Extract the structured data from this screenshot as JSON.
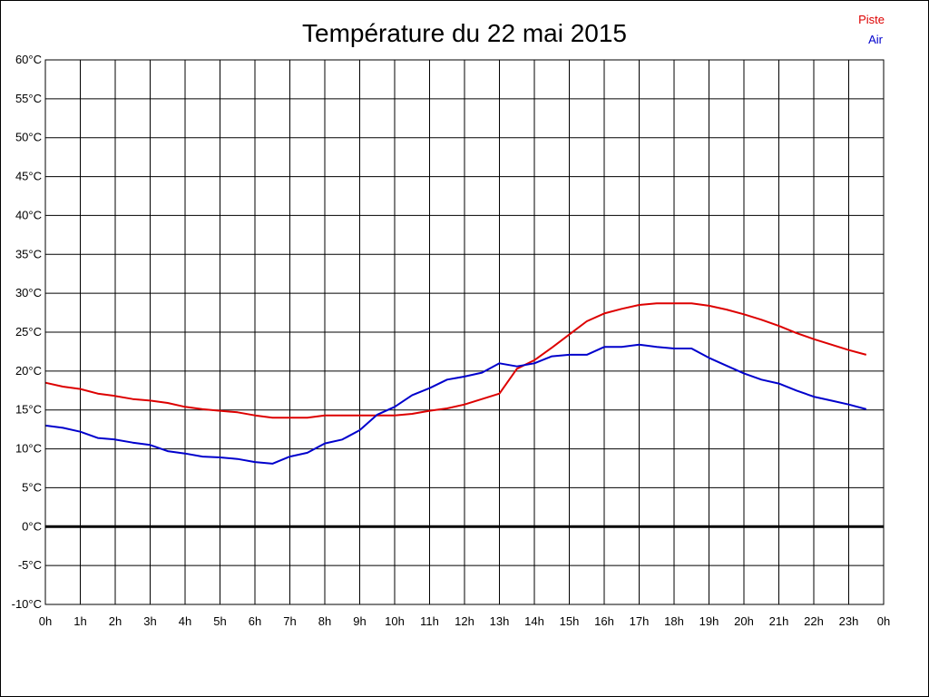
{
  "chart_data": {
    "type": "line",
    "title": "Température du 22 mai 2015",
    "xlabel": "",
    "ylabel": "",
    "x_ticks": [
      "0h",
      "1h",
      "2h",
      "3h",
      "4h",
      "5h",
      "6h",
      "7h",
      "8h",
      "9h",
      "10h",
      "11h",
      "12h",
      "13h",
      "14h",
      "15h",
      "16h",
      "17h",
      "18h",
      "19h",
      "20h",
      "21h",
      "22h",
      "23h",
      "0h"
    ],
    "y_ticks": [
      "60°C",
      "55°C",
      "50°C",
      "45°C",
      "40°C",
      "35°C",
      "30°C",
      "25°C",
      "20°C",
      "15°C",
      "10°C",
      "5°C",
      "0°C",
      "-5°C",
      "-10°C"
    ],
    "xlim": [
      0,
      24
    ],
    "ylim": [
      -10,
      60
    ],
    "grid": true,
    "legend_position": "top-right",
    "series": [
      {
        "name": "Piste",
        "color": "#dd0000",
        "x": [
          0,
          0.5,
          1,
          1.5,
          2,
          2.5,
          3,
          3.5,
          4,
          4.5,
          5,
          5.5,
          6,
          6.5,
          7,
          7.5,
          8,
          8.5,
          9,
          9.5,
          10,
          10.5,
          11,
          11.5,
          12,
          12.5,
          13,
          13.5,
          14,
          14.5,
          15,
          15.5,
          16,
          16.5,
          17,
          17.5,
          18,
          18.5,
          19,
          19.5,
          20,
          20.5,
          21,
          21.5,
          22,
          22.5,
          23,
          23.5
        ],
        "values": [
          18.5,
          18.0,
          17.7,
          17.1,
          16.8,
          16.4,
          16.2,
          15.9,
          15.4,
          15.1,
          14.9,
          14.7,
          14.3,
          14.0,
          14.0,
          14.0,
          14.3,
          14.3,
          14.3,
          14.3,
          14.3,
          14.5,
          14.9,
          15.2,
          15.7,
          16.4,
          17.1,
          20.3,
          21.4,
          23.0,
          24.7,
          26.4,
          27.4,
          28.0,
          28.5,
          28.7,
          28.7,
          28.7,
          28.4,
          27.9,
          27.3,
          26.6,
          25.8,
          24.9,
          24.1,
          23.4,
          22.7,
          22.1
        ]
      },
      {
        "name": "Air",
        "color": "#0000cc",
        "x": [
          0,
          0.5,
          1,
          1.5,
          2,
          2.5,
          3,
          3.5,
          4,
          4.5,
          5,
          5.5,
          6,
          6.5,
          7,
          7.5,
          8,
          8.5,
          9,
          9.5,
          10,
          10.5,
          11,
          11.5,
          12,
          12.5,
          13,
          13.5,
          14,
          14.5,
          15,
          15.5,
          16,
          16.5,
          17,
          17.5,
          18,
          18.5,
          19,
          19.5,
          20,
          20.5,
          21,
          21.5,
          22,
          22.5,
          23,
          23.5
        ],
        "values": [
          13.0,
          12.7,
          12.2,
          11.4,
          11.2,
          10.8,
          10.5,
          9.7,
          9.4,
          9.0,
          8.9,
          8.7,
          8.3,
          8.1,
          9.0,
          9.5,
          10.7,
          11.2,
          12.4,
          14.4,
          15.4,
          16.9,
          17.8,
          18.9,
          19.3,
          19.8,
          21.0,
          20.6,
          21.0,
          21.9,
          22.1,
          22.1,
          23.1,
          23.1,
          23.4,
          23.1,
          22.9,
          22.9,
          21.7,
          20.7,
          19.7,
          18.9,
          18.4,
          17.5,
          16.7,
          16.2,
          15.7,
          15.1
        ]
      }
    ]
  }
}
